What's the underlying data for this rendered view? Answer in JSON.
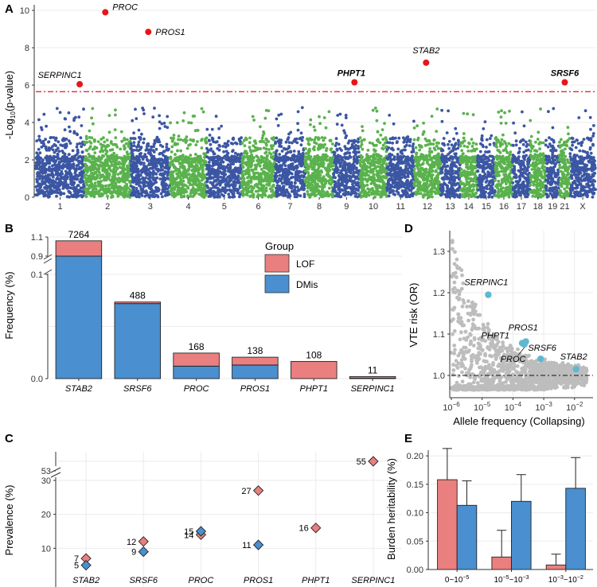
{
  "figure": {
    "panel_labels": [
      "A",
      "B",
      "C",
      "D",
      "E"
    ]
  },
  "colors": {
    "blue": "#3b56a3",
    "green": "#5ab24d",
    "red_point": "#e8141a",
    "threshold": "#e8141a",
    "lof": "#ea7f7f",
    "dmis": "#4a8fcf",
    "highlight": "#5fb8d0",
    "grey_point": "#bdbdbd"
  },
  "chart_data": [
    {
      "id": "A",
      "type": "scatter",
      "title": "",
      "xlabel": "",
      "ylabel": "-Log10(p-value)",
      "ylabel_main": "-Log",
      "ylabel_sub": "10",
      "ylabel_tail": "(p-value)",
      "ylim": [
        0,
        10.3
      ],
      "yticks": [
        "0",
        "2",
        "4",
        "6",
        "8",
        "10"
      ],
      "chromosomes": [
        "1",
        "2",
        "3",
        "4",
        "5",
        "6",
        "7",
        "8",
        "9",
        "10",
        "11",
        "12",
        "13",
        "14",
        "15",
        "16",
        "17",
        "18",
        "19",
        "21",
        "X"
      ],
      "threshold": 5.65,
      "significant": [
        {
          "gene": "SERPINC1",
          "chrom": "1",
          "value": 6.05,
          "bold": false
        },
        {
          "gene": "PROC",
          "chrom": "2",
          "value": 9.9,
          "bold": false
        },
        {
          "gene": "PROS1",
          "chrom": "3",
          "value": 8.85,
          "bold": false
        },
        {
          "gene": "PHPT1",
          "chrom": "9",
          "value": 6.15,
          "bold": true
        },
        {
          "gene": "STAB2",
          "chrom": "12",
          "value": 7.2,
          "bold": false
        },
        {
          "gene": "SRSF6",
          "chrom": "21",
          "value": 6.15,
          "bold": true
        }
      ]
    },
    {
      "id": "B",
      "type": "bar",
      "xlabel": "",
      "ylabel": "Frequency (%)",
      "categories": [
        "STAB2",
        "SRSF6",
        "PROC",
        "PROS1",
        "PHPT1",
        "SERPINC1"
      ],
      "counts": [
        "7264",
        "488",
        "168",
        "138",
        "108",
        "11"
      ],
      "series": [
        {
          "name": "DMis",
          "values": [
            0.9,
            0.072,
            0.012,
            0.013,
            0.0,
            0.0005
          ]
        },
        {
          "name": "LOF",
          "values": [
            0.16,
            0.0015,
            0.0125,
            0.0075,
            0.0165,
            0.0015
          ]
        }
      ],
      "yticks": [
        "0.0",
        "0.1",
        "0.9",
        "1.1"
      ],
      "legend_title": "Group",
      "legend": [
        "LOF",
        "DMis"
      ]
    },
    {
      "id": "C",
      "type": "scatter",
      "ylabel": "Prevalence (%)",
      "categories": [
        "STAB2",
        "SRSF6",
        "PROC",
        "PROS1",
        "PHPT1",
        "SERPINC1"
      ],
      "yticks_lower": [
        "10",
        "20",
        "30"
      ],
      "yticks_upper": [
        "53"
      ],
      "points": [
        {
          "cat": "STAB2",
          "group": "LOF",
          "value": 7,
          "label": "7"
        },
        {
          "cat": "STAB2",
          "group": "DMis",
          "value": 5,
          "label": "5"
        },
        {
          "cat": "SRSF6",
          "group": "LOF",
          "value": 12,
          "label": "12"
        },
        {
          "cat": "SRSF6",
          "group": "DMis",
          "value": 9,
          "label": "9"
        },
        {
          "cat": "PROC",
          "group": "LOF",
          "value": 14,
          "label": "14"
        },
        {
          "cat": "PROC",
          "group": "DMis",
          "value": 15,
          "label": "15"
        },
        {
          "cat": "PROS1",
          "group": "LOF",
          "value": 27,
          "label": "27"
        },
        {
          "cat": "PROS1",
          "group": "DMis",
          "value": 11,
          "label": "11"
        },
        {
          "cat": "PHPT1",
          "group": "LOF",
          "value": 16,
          "label": "16"
        },
        {
          "cat": "SERPINC1",
          "group": "LOF",
          "value": 55,
          "label": "55"
        }
      ]
    },
    {
      "id": "D",
      "type": "scatter",
      "xlabel": "Allele frequency (Collapsing)",
      "ylabel": "VTE risk (OR)",
      "xlim_log10": [
        -6,
        -1.4
      ],
      "ylim": [
        0.95,
        1.35
      ],
      "yticks": [
        "1.0",
        "1.1",
        "1.2",
        "1.3"
      ],
      "xticks_base": "10",
      "xticks_exp": [
        "−6",
        "−5",
        "−4",
        "−3",
        "−2"
      ],
      "reference_line": 1.0,
      "highlight": [
        {
          "gene": "SERPINC1",
          "log10_af": -4.8,
          "or": 1.195
        },
        {
          "gene": "PROS1",
          "log10_af": -3.58,
          "or": 1.082
        },
        {
          "gene": "PHPT1",
          "log10_af": -3.7,
          "or": 1.078
        },
        {
          "gene": "PROC",
          "log10_af": -3.63,
          "or": 1.075
        },
        {
          "gene": "SRSF6",
          "log10_af": -3.1,
          "or": 1.04
        },
        {
          "gene": "STAB2",
          "log10_af": -1.95,
          "or": 1.015
        }
      ]
    },
    {
      "id": "E",
      "type": "bar",
      "xlabel": "",
      "ylabel": "Burden heritability (%)",
      "ylim": [
        0,
        0.21
      ],
      "yticks": [
        "0.00",
        "0.05",
        "0.10",
        "0.15",
        "0.20"
      ],
      "categories": [
        {
          "pre": "0~10",
          "sup": "−5"
        },
        {
          "pre": "10",
          "sup": "−5",
          "mid": "~10",
          "sup2": "−3"
        },
        {
          "pre": "10",
          "sup": "−3",
          "mid": "~10",
          "sup2": "−2"
        }
      ],
      "series": [
        {
          "name": "LOF",
          "values": [
            0.158,
            0.022,
            0.008
          ],
          "errors": [
            0.055,
            0.047,
            0.019
          ]
        },
        {
          "name": "DMis",
          "values": [
            0.113,
            0.12,
            0.143
          ],
          "errors": [
            0.043,
            0.047,
            0.054
          ]
        }
      ]
    }
  ]
}
